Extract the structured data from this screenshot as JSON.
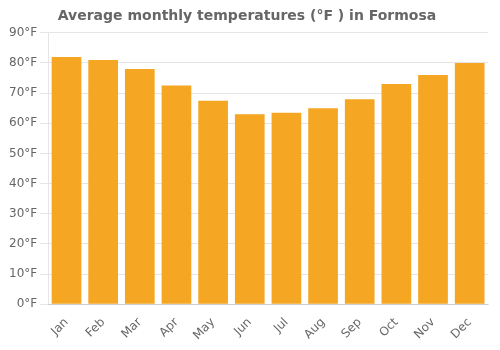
{
  "chart_data": {
    "type": "bar",
    "title": "Average monthly temperatures (°F ) in Formosa",
    "categories": [
      "Jan",
      "Feb",
      "Mar",
      "Apr",
      "May",
      "Jun",
      "Jul",
      "Aug",
      "Sep",
      "Oct",
      "Nov",
      "Dec"
    ],
    "values": [
      82,
      81,
      78,
      72.5,
      67.5,
      63,
      63.5,
      65,
      68,
      73,
      76,
      80
    ],
    "color": "#F5A623",
    "ylim": [
      0,
      90
    ],
    "yticks": [
      {
        "value": 0,
        "label": "0°F"
      },
      {
        "value": 10,
        "label": "10°F"
      },
      {
        "value": 20,
        "label": "20°F"
      },
      {
        "value": 30,
        "label": "30°F"
      },
      {
        "value": 40,
        "label": "40°F"
      },
      {
        "value": 50,
        "label": "50°F"
      },
      {
        "value": 60,
        "label": "60°F"
      },
      {
        "value": 70,
        "label": "70°F"
      },
      {
        "value": 80,
        "label": "80°F"
      },
      {
        "value": 90,
        "label": "90°F"
      }
    ],
    "grid": true
  }
}
